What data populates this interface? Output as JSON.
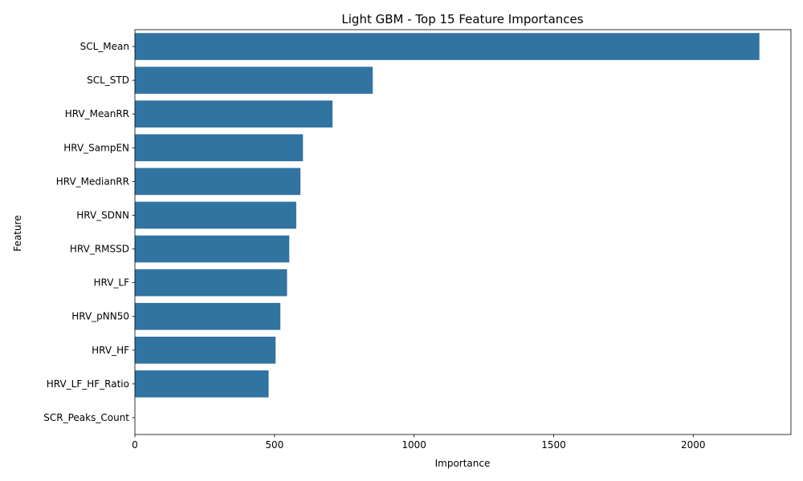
{
  "chart_data": {
    "type": "bar",
    "orientation": "horizontal",
    "title": "Light GBM - Top 15 Feature Importances",
    "xlabel": "Importance",
    "ylabel": "Feature",
    "categories": [
      "SCL_Mean",
      "SCL_STD",
      "HRV_MeanRR",
      "HRV_SampEN",
      "HRV_MedianRR",
      "HRV_SDNN",
      "HRV_RMSSD",
      "HRV_LF",
      "HRV_pNN50",
      "HRV_HF",
      "HRV_LF_HF_Ratio",
      "SCR_Peaks_Count"
    ],
    "values": [
      2237,
      852,
      708,
      602,
      593,
      578,
      553,
      545,
      521,
      504,
      479,
      0
    ],
    "xlim": [
      0,
      2350
    ],
    "xticks": [
      0,
      500,
      1000,
      1500,
      2000
    ],
    "grid": false,
    "bar_color": "#3274a1"
  }
}
